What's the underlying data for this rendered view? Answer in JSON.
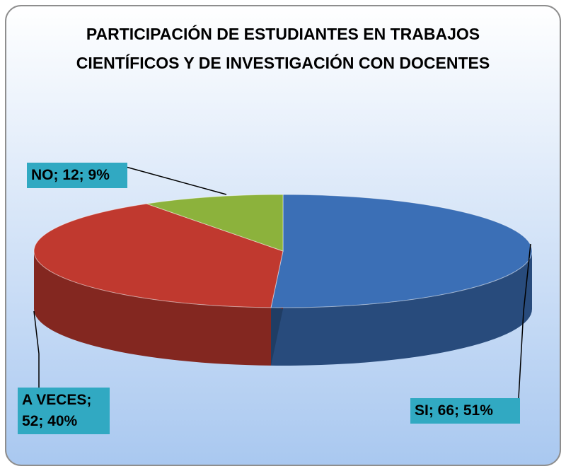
{
  "chart_data": {
    "type": "pie",
    "title": "PARTICIPACIÓN DE ESTUDIANTES EN TRABAJOS CIENTÍFICOS Y DE INVESTIGACIÓN CON DOCENTES",
    "categories": [
      "SI",
      "A VECES",
      "NO"
    ],
    "values": [
      66,
      52,
      12
    ],
    "value_labels": [
      "SI; 66; 51%",
      "A VECES; 52; 40%",
      "NO; 12; 9%"
    ],
    "colors": [
      "#3b6fb6",
      "#c0392f",
      "#8cb23c"
    ]
  }
}
